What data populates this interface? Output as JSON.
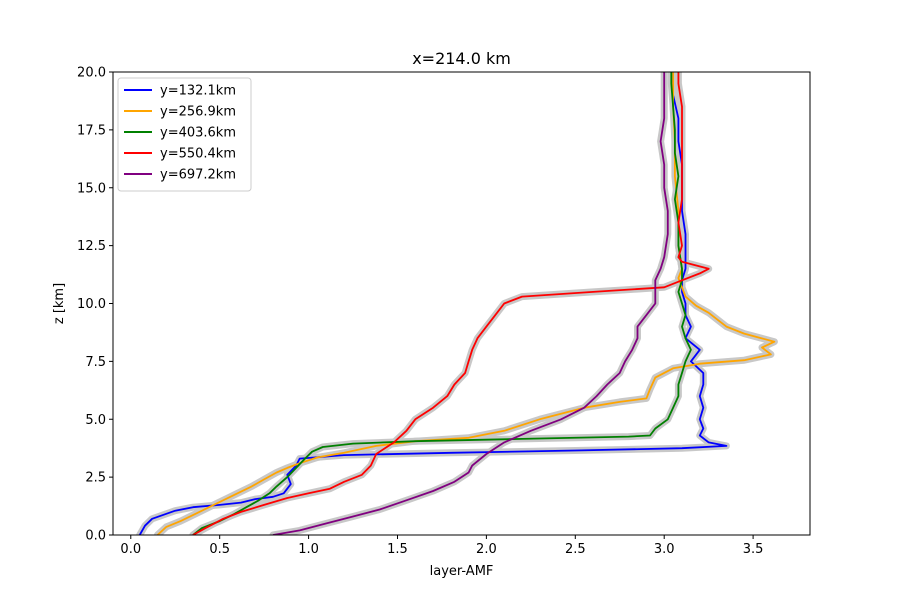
{
  "chart_data": {
    "type": "line",
    "title": "x=214.0 km",
    "xlabel": "layer-AMF",
    "ylabel": "z [km]",
    "xlim": [
      -0.1,
      3.82
    ],
    "ylim": [
      0,
      20
    ],
    "x_ticks": [
      "0.0",
      "0.5",
      "1.0",
      "1.5",
      "2.0",
      "2.5",
      "3.0",
      "3.5"
    ],
    "y_ticks": [
      "0.0",
      "2.5",
      "5.0",
      "7.5",
      "10.0",
      "12.5",
      "15.0",
      "17.5",
      "20.0"
    ],
    "x_tick_values": [
      0,
      0.5,
      1.0,
      1.5,
      2.0,
      2.5,
      3.0,
      3.5
    ],
    "y_tick_values": [
      0,
      2.5,
      5.0,
      7.5,
      10.0,
      12.5,
      15.0,
      17.5,
      20.0
    ],
    "grid": false,
    "legend_position": "top-left",
    "uncertainty_band_color": "#c8c8c8",
    "series": [
      {
        "name": "y=132.1km",
        "color": "#0000ff",
        "points": [
          [
            0.05,
            0.0
          ],
          [
            0.08,
            0.4
          ],
          [
            0.12,
            0.7
          ],
          [
            0.25,
            1.05
          ],
          [
            0.35,
            1.2
          ],
          [
            0.5,
            1.3
          ],
          [
            0.62,
            1.4
          ],
          [
            0.7,
            1.55
          ],
          [
            0.8,
            1.65
          ],
          [
            0.86,
            1.8
          ],
          [
            0.9,
            2.2
          ],
          [
            0.88,
            2.6
          ],
          [
            0.93,
            3.0
          ],
          [
            0.95,
            3.3
          ],
          [
            1.2,
            3.45
          ],
          [
            1.8,
            3.55
          ],
          [
            2.5,
            3.65
          ],
          [
            3.1,
            3.75
          ],
          [
            3.35,
            3.85
          ],
          [
            3.25,
            4.0
          ],
          [
            3.2,
            4.3
          ],
          [
            3.22,
            4.6
          ],
          [
            3.2,
            5.0
          ],
          [
            3.22,
            5.5
          ],
          [
            3.2,
            6.0
          ],
          [
            3.22,
            6.5
          ],
          [
            3.22,
            7.0
          ],
          [
            3.15,
            7.5
          ],
          [
            3.2,
            8.0
          ],
          [
            3.12,
            8.5
          ],
          [
            3.15,
            9.0
          ],
          [
            3.12,
            9.5
          ],
          [
            3.12,
            10.0
          ],
          [
            3.1,
            10.5
          ],
          [
            3.1,
            11.0
          ],
          [
            3.12,
            11.5
          ],
          [
            3.12,
            12.0
          ],
          [
            3.12,
            13.0
          ],
          [
            3.1,
            14.0
          ],
          [
            3.1,
            15.0
          ],
          [
            3.1,
            16.0
          ],
          [
            3.08,
            17.0
          ],
          [
            3.08,
            18.0
          ],
          [
            3.05,
            19.0
          ],
          [
            3.05,
            20.0
          ]
        ]
      },
      {
        "name": "y=256.9km",
        "color": "#ffa500",
        "points": [
          [
            0.15,
            0.0
          ],
          [
            0.2,
            0.35
          ],
          [
            0.28,
            0.6
          ],
          [
            0.36,
            0.9
          ],
          [
            0.44,
            1.2
          ],
          [
            0.52,
            1.5
          ],
          [
            0.6,
            1.8
          ],
          [
            0.68,
            2.1
          ],
          [
            0.75,
            2.4
          ],
          [
            0.82,
            2.7
          ],
          [
            0.88,
            2.9
          ],
          [
            0.95,
            3.1
          ],
          [
            1.05,
            3.35
          ],
          [
            1.2,
            3.55
          ],
          [
            1.38,
            3.85
          ],
          [
            1.6,
            4.05
          ],
          [
            1.9,
            4.2
          ],
          [
            2.1,
            4.5
          ],
          [
            2.3,
            5.0
          ],
          [
            2.55,
            5.5
          ],
          [
            2.75,
            5.75
          ],
          [
            2.9,
            5.9
          ],
          [
            2.92,
            6.3
          ],
          [
            2.95,
            6.8
          ],
          [
            3.05,
            7.2
          ],
          [
            3.2,
            7.4
          ],
          [
            3.45,
            7.55
          ],
          [
            3.6,
            7.8
          ],
          [
            3.55,
            8.1
          ],
          [
            3.62,
            8.35
          ],
          [
            3.45,
            8.7
          ],
          [
            3.35,
            9.0
          ],
          [
            3.3,
            9.3
          ],
          [
            3.25,
            9.6
          ],
          [
            3.18,
            9.9
          ],
          [
            3.12,
            10.3
          ],
          [
            3.1,
            10.7
          ],
          [
            3.08,
            11.1
          ],
          [
            3.1,
            11.5
          ],
          [
            3.08,
            12.5
          ],
          [
            3.08,
            14.0
          ],
          [
            3.06,
            15.5
          ],
          [
            3.06,
            17.0
          ],
          [
            3.05,
            18.5
          ],
          [
            3.05,
            20.0
          ]
        ]
      },
      {
        "name": "y=403.6km",
        "color": "#008000",
        "points": [
          [
            0.35,
            0.0
          ],
          [
            0.4,
            0.3
          ],
          [
            0.5,
            0.6
          ],
          [
            0.58,
            0.9
          ],
          [
            0.65,
            1.2
          ],
          [
            0.72,
            1.5
          ],
          [
            0.78,
            1.8
          ],
          [
            0.82,
            2.1
          ],
          [
            0.88,
            2.5
          ],
          [
            0.93,
            2.9
          ],
          [
            0.98,
            3.3
          ],
          [
            1.02,
            3.6
          ],
          [
            1.08,
            3.8
          ],
          [
            1.25,
            3.95
          ],
          [
            1.6,
            4.05
          ],
          [
            2.2,
            4.15
          ],
          [
            2.8,
            4.25
          ],
          [
            2.92,
            4.3
          ],
          [
            2.95,
            4.6
          ],
          [
            3.02,
            5.0
          ],
          [
            3.05,
            5.5
          ],
          [
            3.08,
            6.0
          ],
          [
            3.08,
            6.5
          ],
          [
            3.1,
            7.0
          ],
          [
            3.12,
            7.5
          ],
          [
            3.15,
            8.0
          ],
          [
            3.12,
            8.5
          ],
          [
            3.1,
            9.0
          ],
          [
            3.12,
            9.5
          ],
          [
            3.1,
            10.0
          ],
          [
            3.08,
            10.5
          ],
          [
            3.1,
            11.0
          ],
          [
            3.1,
            11.5
          ],
          [
            3.08,
            12.5
          ],
          [
            3.08,
            13.5
          ],
          [
            3.06,
            14.5
          ],
          [
            3.08,
            15.5
          ],
          [
            3.06,
            16.5
          ],
          [
            3.06,
            17.5
          ],
          [
            3.05,
            18.5
          ],
          [
            3.04,
            19.5
          ],
          [
            3.04,
            20.0
          ]
        ]
      },
      {
        "name": "y=550.4km",
        "color": "#ff0000",
        "points": [
          [
            0.35,
            0.0
          ],
          [
            0.42,
            0.3
          ],
          [
            0.52,
            0.7
          ],
          [
            0.62,
            1.0
          ],
          [
            0.75,
            1.3
          ],
          [
            0.88,
            1.6
          ],
          [
            1.0,
            1.8
          ],
          [
            1.12,
            2.0
          ],
          [
            1.2,
            2.3
          ],
          [
            1.3,
            2.6
          ],
          [
            1.35,
            3.0
          ],
          [
            1.38,
            3.5
          ],
          [
            1.48,
            4.0
          ],
          [
            1.55,
            4.5
          ],
          [
            1.6,
            5.0
          ],
          [
            1.7,
            5.5
          ],
          [
            1.78,
            6.0
          ],
          [
            1.82,
            6.5
          ],
          [
            1.88,
            7.0
          ],
          [
            1.9,
            7.5
          ],
          [
            1.92,
            8.0
          ],
          [
            1.95,
            8.5
          ],
          [
            2.0,
            9.0
          ],
          [
            2.05,
            9.5
          ],
          [
            2.1,
            10.0
          ],
          [
            2.2,
            10.3
          ],
          [
            2.6,
            10.5
          ],
          [
            3.0,
            10.7
          ],
          [
            3.1,
            11.0
          ],
          [
            3.2,
            11.3
          ],
          [
            3.25,
            11.5
          ],
          [
            3.1,
            11.8
          ],
          [
            3.08,
            12.0
          ],
          [
            3.1,
            12.5
          ],
          [
            3.08,
            13.5
          ],
          [
            3.1,
            14.5
          ],
          [
            3.1,
            15.5
          ],
          [
            3.1,
            16.5
          ],
          [
            3.1,
            17.5
          ],
          [
            3.1,
            18.5
          ],
          [
            3.08,
            19.5
          ],
          [
            3.08,
            20.0
          ]
        ]
      },
      {
        "name": "y=697.2km",
        "color": "#800080",
        "points": [
          [
            0.8,
            0.0
          ],
          [
            0.95,
            0.2
          ],
          [
            1.1,
            0.5
          ],
          [
            1.25,
            0.8
          ],
          [
            1.4,
            1.1
          ],
          [
            1.55,
            1.5
          ],
          [
            1.7,
            1.9
          ],
          [
            1.82,
            2.3
          ],
          [
            1.9,
            2.7
          ],
          [
            1.92,
            3.0
          ],
          [
            2.0,
            3.5
          ],
          [
            2.1,
            4.0
          ],
          [
            2.25,
            4.5
          ],
          [
            2.42,
            5.0
          ],
          [
            2.55,
            5.5
          ],
          [
            2.62,
            6.0
          ],
          [
            2.68,
            6.5
          ],
          [
            2.75,
            7.0
          ],
          [
            2.78,
            7.5
          ],
          [
            2.82,
            8.0
          ],
          [
            2.85,
            8.5
          ],
          [
            2.85,
            9.0
          ],
          [
            2.9,
            9.5
          ],
          [
            2.95,
            10.0
          ],
          [
            2.95,
            10.5
          ],
          [
            2.95,
            11.0
          ],
          [
            2.98,
            11.5
          ],
          [
            3.0,
            12.0
          ],
          [
            3.02,
            13.0
          ],
          [
            3.02,
            14.0
          ],
          [
            3.0,
            15.0
          ],
          [
            3.0,
            16.0
          ],
          [
            2.98,
            17.0
          ],
          [
            3.0,
            18.0
          ],
          [
            3.0,
            19.0
          ],
          [
            3.0,
            20.0
          ]
        ]
      }
    ]
  }
}
